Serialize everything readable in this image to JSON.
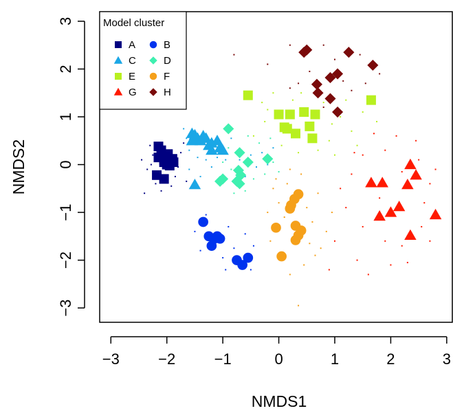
{
  "chart_data": {
    "type": "scatter",
    "xlabel": "NMDS1",
    "ylabel": "NMDS2",
    "xlim": [
      -3.2,
      3.1
    ],
    "ylim": [
      -3.3,
      3.2
    ],
    "xticks": [
      "−3",
      "−2",
      "−1",
      "0",
      "1",
      "2",
      "3"
    ],
    "yticks": [
      "−3",
      "−2",
      "−1",
      "0",
      "1",
      "2",
      "3"
    ],
    "legend": {
      "title": "Model cluster",
      "position": "top-left",
      "entries": [
        "A",
        "B",
        "C",
        "D",
        "E",
        "F",
        "G",
        "H"
      ]
    },
    "series": [
      {
        "name": "A",
        "color": "#000080",
        "marker": "square",
        "points": [
          [
            -2.15,
            0.38
          ],
          [
            -2.1,
            0.3
          ],
          [
            -2.15,
            0.15
          ],
          [
            -2.05,
            0.1
          ],
          [
            -2.0,
            0.18
          ],
          [
            -1.95,
            0.1
          ],
          [
            -1.9,
            0.12
          ],
          [
            -1.88,
            0.05
          ],
          [
            -2.0,
            0.0
          ],
          [
            -1.95,
            -0.02
          ],
          [
            -2.05,
            0.05
          ],
          [
            -1.98,
            0.22
          ],
          [
            -2.18,
            -0.22
          ],
          [
            -2.05,
            -0.3
          ]
        ],
        "background": [
          [
            -2.3,
            0.4
          ],
          [
            -2.25,
            0.2
          ],
          [
            -2.28,
            0.0
          ],
          [
            -2.35,
            -0.1
          ],
          [
            -2.2,
            -0.4
          ],
          [
            -1.85,
            -0.25
          ],
          [
            -1.8,
            -0.05
          ],
          [
            -1.75,
            0.25
          ],
          [
            -2.4,
            -0.6
          ],
          [
            -2.45,
            0.1
          ],
          [
            -1.7,
            0.45
          ],
          [
            -1.92,
            -0.45
          ],
          [
            -2.1,
            -0.55
          ],
          [
            -1.65,
            -0.35
          ]
        ]
      },
      {
        "name": "B",
        "color": "#0033ee",
        "marker": "circle",
        "points": [
          [
            -1.35,
            -1.2
          ],
          [
            -1.25,
            -1.5
          ],
          [
            -1.2,
            -1.7
          ],
          [
            -1.15,
            -1.55
          ],
          [
            -1.05,
            -1.55
          ],
          [
            -1.1,
            -1.5
          ],
          [
            -0.75,
            -2.0
          ],
          [
            -0.65,
            -2.1
          ],
          [
            -0.55,
            -1.95
          ]
        ],
        "background": [
          [
            -1.4,
            -1.8
          ],
          [
            -1.5,
            -1.4
          ],
          [
            -0.9,
            -1.3
          ],
          [
            -0.8,
            -1.75
          ],
          [
            -0.95,
            -2.2
          ],
          [
            -0.45,
            -1.7
          ],
          [
            -1.3,
            -1.05
          ],
          [
            -0.6,
            -1.45
          ],
          [
            -0.5,
            -2.2
          ],
          [
            -1.0,
            -1.95
          ]
        ]
      },
      {
        "name": "C",
        "color": "#1ba7e6",
        "marker": "triangle",
        "points": [
          [
            -1.55,
            0.65
          ],
          [
            -1.5,
            0.62
          ],
          [
            -1.45,
            0.55
          ],
          [
            -1.55,
            0.5
          ],
          [
            -1.4,
            0.5
          ],
          [
            -1.3,
            0.55
          ],
          [
            -1.2,
            0.45
          ],
          [
            -1.1,
            0.5
          ],
          [
            -1.05,
            0.35
          ],
          [
            -1.0,
            0.3
          ],
          [
            -1.2,
            0.3
          ],
          [
            -1.5,
            -0.42
          ],
          [
            -1.25,
            0.4
          ],
          [
            -1.35,
            0.6
          ]
        ],
        "background": [
          [
            -1.7,
            0.75
          ],
          [
            -1.6,
            0.3
          ],
          [
            -1.45,
            0.15
          ],
          [
            -1.3,
            0.1
          ],
          [
            -1.1,
            0.15
          ],
          [
            -0.95,
            0.1
          ],
          [
            -1.6,
            -0.1
          ],
          [
            -1.4,
            -0.25
          ],
          [
            -1.65,
            0.55
          ],
          [
            -0.85,
            0.55
          ],
          [
            -1.2,
            -0.05
          ],
          [
            -0.7,
            0.1
          ],
          [
            -0.5,
            0.2
          ],
          [
            -0.3,
            0.25
          ],
          [
            -0.4,
            -0.05
          ],
          [
            -0.2,
            0.0
          ],
          [
            -0.1,
            0.35
          ],
          [
            -0.6,
            -0.25
          ]
        ]
      },
      {
        "name": "D",
        "color": "#3ff0b0",
        "marker": "diamond",
        "points": [
          [
            -0.9,
            0.75
          ],
          [
            -0.7,
            0.25
          ],
          [
            -0.55,
            0.05
          ],
          [
            -0.72,
            -0.12
          ],
          [
            -0.68,
            -0.22
          ],
          [
            -0.75,
            -0.35
          ],
          [
            -0.7,
            -0.4
          ],
          [
            -1.05,
            -0.35
          ],
          [
            -1.0,
            -0.3
          ],
          [
            -0.2,
            0.12
          ]
        ],
        "background": [
          [
            -0.9,
            0.35
          ],
          [
            -0.85,
            -0.1
          ],
          [
            -0.6,
            -0.55
          ],
          [
            -0.45,
            -0.3
          ],
          [
            -0.35,
            0.45
          ],
          [
            -0.25,
            -0.2
          ],
          [
            -0.1,
            0.05
          ],
          [
            -1.0,
            0.05
          ],
          [
            -0.55,
            0.6
          ],
          [
            -0.8,
            -0.6
          ],
          [
            0.0,
            -0.15
          ],
          [
            -0.15,
            0.55
          ]
        ]
      },
      {
        "name": "E",
        "color": "#b8f020",
        "marker": "square",
        "points": [
          [
            -0.55,
            1.45
          ],
          [
            1.65,
            1.35
          ],
          [
            0.0,
            1.05
          ],
          [
            0.2,
            1.05
          ],
          [
            0.45,
            1.1
          ],
          [
            0.1,
            0.78
          ],
          [
            0.15,
            0.75
          ],
          [
            0.3,
            0.65
          ],
          [
            0.55,
            0.8
          ],
          [
            0.65,
            1.05
          ],
          [
            0.6,
            0.55
          ]
        ],
        "background": [
          [
            -0.3,
            1.3
          ],
          [
            -0.1,
            1.5
          ],
          [
            0.4,
            1.5
          ],
          [
            0.8,
            1.3
          ],
          [
            1.1,
            1.0
          ],
          [
            1.3,
            0.7
          ],
          [
            1.5,
            1.1
          ],
          [
            1.75,
            0.9
          ],
          [
            0.9,
            0.5
          ],
          [
            0.7,
            0.3
          ],
          [
            0.35,
            0.25
          ],
          [
            -0.25,
            0.9
          ],
          [
            -0.45,
            0.6
          ],
          [
            0.05,
            0.4
          ],
          [
            1.0,
            0.2
          ],
          [
            1.4,
            0.4
          ],
          [
            -0.2,
            1.15
          ],
          [
            0.25,
            1.35
          ],
          [
            0.95,
            0.85
          ],
          [
            1.2,
            1.35
          ]
        ]
      },
      {
        "name": "F",
        "color": "#f5a01a",
        "marker": "circle",
        "points": [
          [
            0.35,
            -0.62
          ],
          [
            0.28,
            -0.72
          ],
          [
            0.22,
            -0.85
          ],
          [
            0.2,
            -0.92
          ],
          [
            -0.05,
            -1.32
          ],
          [
            0.3,
            -1.28
          ],
          [
            0.4,
            -1.38
          ],
          [
            0.35,
            -1.48
          ],
          [
            0.3,
            -1.58
          ],
          [
            0.05,
            -1.92
          ]
        ],
        "background": [
          [
            -0.1,
            -0.5
          ],
          [
            0.0,
            -0.8
          ],
          [
            0.15,
            -0.4
          ],
          [
            0.5,
            -0.9
          ],
          [
            0.6,
            -1.2
          ],
          [
            0.55,
            -1.65
          ],
          [
            0.45,
            -2.1
          ],
          [
            0.2,
            -2.3
          ],
          [
            -0.2,
            -1.0
          ],
          [
            0.1,
            -1.1
          ],
          [
            0.7,
            -0.6
          ],
          [
            0.85,
            -1.4
          ],
          [
            0.4,
            -0.2
          ],
          [
            -0.15,
            -1.6
          ],
          [
            0.65,
            -1.9
          ],
          [
            0.35,
            -2.95
          ],
          [
            0.95,
            -1.0
          ],
          [
            0.2,
            -0.1
          ],
          [
            -0.05,
            -0.3
          ],
          [
            0.75,
            -1.75
          ]
        ]
      },
      {
        "name": "G",
        "color": "#ff1a00",
        "marker": "triangle",
        "points": [
          [
            2.35,
            0.0
          ],
          [
            2.45,
            -0.22
          ],
          [
            2.3,
            -0.42
          ],
          [
            1.65,
            -0.38
          ],
          [
            1.85,
            -0.38
          ],
          [
            1.8,
            -1.08
          ],
          [
            2.15,
            -0.88
          ],
          [
            2.0,
            -1.0
          ],
          [
            2.35,
            -1.48
          ],
          [
            2.8,
            -1.05
          ]
        ],
        "background": [
          [
            1.3,
            -0.2
          ],
          [
            1.5,
            0.2
          ],
          [
            1.9,
            0.3
          ],
          [
            2.1,
            0.6
          ],
          [
            2.5,
            0.1
          ],
          [
            2.7,
            -0.4
          ],
          [
            2.6,
            -0.8
          ],
          [
            2.55,
            -1.3
          ],
          [
            2.2,
            -1.7
          ],
          [
            1.9,
            -1.6
          ],
          [
            1.5,
            -1.3
          ],
          [
            1.2,
            -0.9
          ],
          [
            1.1,
            -0.5
          ],
          [
            1.0,
            -1.6
          ],
          [
            1.4,
            -2.0
          ],
          [
            2.0,
            -2.1
          ],
          [
            2.8,
            -0.1
          ],
          [
            2.45,
            0.5
          ],
          [
            1.7,
            0.65
          ],
          [
            1.35,
            0.25
          ],
          [
            0.9,
            -2.2
          ],
          [
            1.6,
            -2.3
          ],
          [
            2.3,
            -2.05
          ],
          [
            2.7,
            -1.6
          ],
          [
            1.8,
            -0.7
          ],
          [
            2.2,
            -0.15
          ]
        ]
      },
      {
        "name": "H",
        "color": "#7a0a0a",
        "marker": "diamond",
        "points": [
          [
            0.45,
            2.35
          ],
          [
            0.5,
            2.4
          ],
          [
            1.25,
            2.35
          ],
          [
            1.68,
            2.08
          ],
          [
            1.05,
            1.9
          ],
          [
            0.92,
            1.82
          ],
          [
            0.68,
            1.68
          ],
          [
            0.7,
            1.5
          ],
          [
            0.92,
            1.38
          ],
          [
            1.05,
            1.1
          ]
        ],
        "background": [
          [
            0.2,
            2.5
          ],
          [
            0.8,
            2.5
          ],
          [
            1.0,
            2.2
          ],
          [
            1.45,
            2.3
          ],
          [
            1.55,
            1.7
          ],
          [
            0.55,
            1.95
          ],
          [
            0.35,
            1.7
          ],
          [
            0.2,
            1.6
          ],
          [
            1.3,
            1.55
          ],
          [
            0.8,
            1.2
          ],
          [
            -0.8,
            2.3
          ],
          [
            -0.2,
            2.1
          ],
          [
            1.8,
            1.9
          ],
          [
            1.15,
            1.75
          ]
        ]
      }
    ]
  }
}
